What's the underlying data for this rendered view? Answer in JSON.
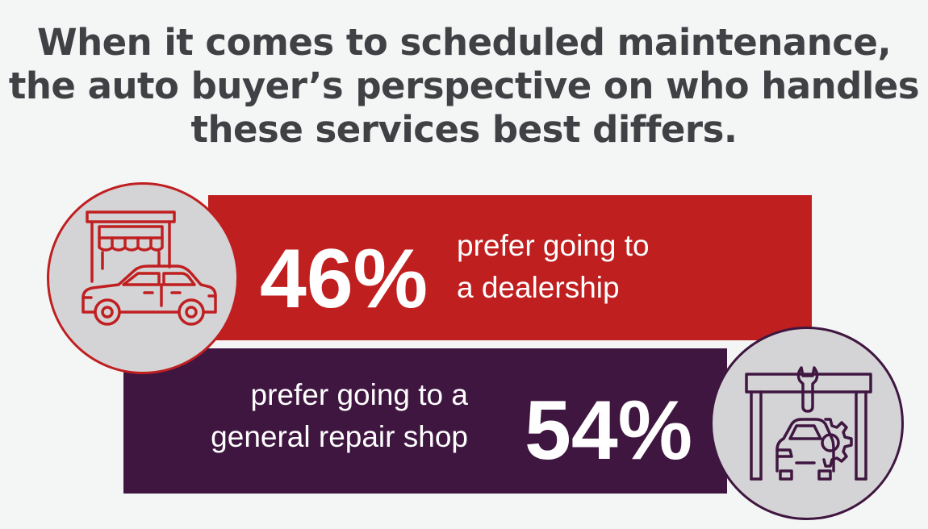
{
  "headline": {
    "line1": "When it comes to scheduled maintenance,",
    "line2": "the auto buyer’s perspective on who handles",
    "line3": "these services best differs."
  },
  "chart_data": {
    "type": "bar",
    "categories": [
      "prefer going to a dealership",
      "prefer going to a general repair shop"
    ],
    "values": [
      46,
      54
    ],
    "unit": "%"
  },
  "stats": [
    {
      "value_label": "46%",
      "desc_line1": "prefer going to",
      "desc_line2": "a dealership",
      "icon": "dealership-car-icon",
      "color": "#c01f20"
    },
    {
      "value_label": "54%",
      "desc_line1": "prefer going to a",
      "desc_line2": "general repair shop",
      "icon": "repair-shop-icon",
      "color": "#3f1640"
    }
  ],
  "colors": {
    "background": "#f4f6f6",
    "headline": "#3f4144",
    "circle": "#d4d4d6"
  }
}
